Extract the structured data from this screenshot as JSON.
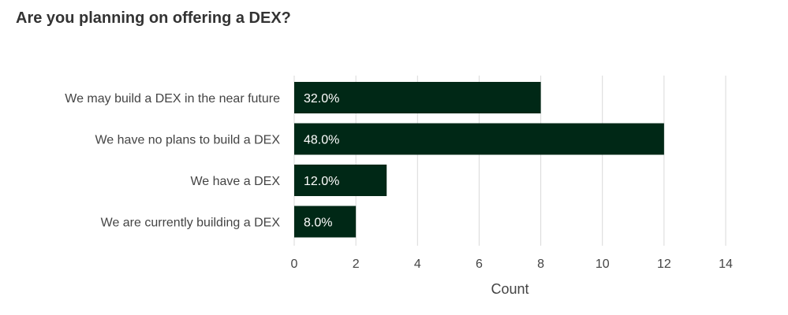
{
  "chart_data": {
    "type": "bar",
    "orientation": "horizontal",
    "title": "Are you planning on offering a DEX?",
    "xlabel": "Count",
    "ylabel": "",
    "categories": [
      "We may build a DEX in the near future",
      "We have no plans to build a DEX",
      "We have a DEX",
      "We are currently building a DEX"
    ],
    "values": [
      8,
      12,
      3,
      2
    ],
    "data_labels": [
      "32.0%",
      "48.0%",
      "12.0%",
      "8.0%"
    ],
    "xlim": [
      0,
      14
    ],
    "ticks": [
      0,
      2,
      4,
      6,
      8,
      10,
      12,
      14
    ],
    "grid": true,
    "bar_color": "#002816"
  }
}
